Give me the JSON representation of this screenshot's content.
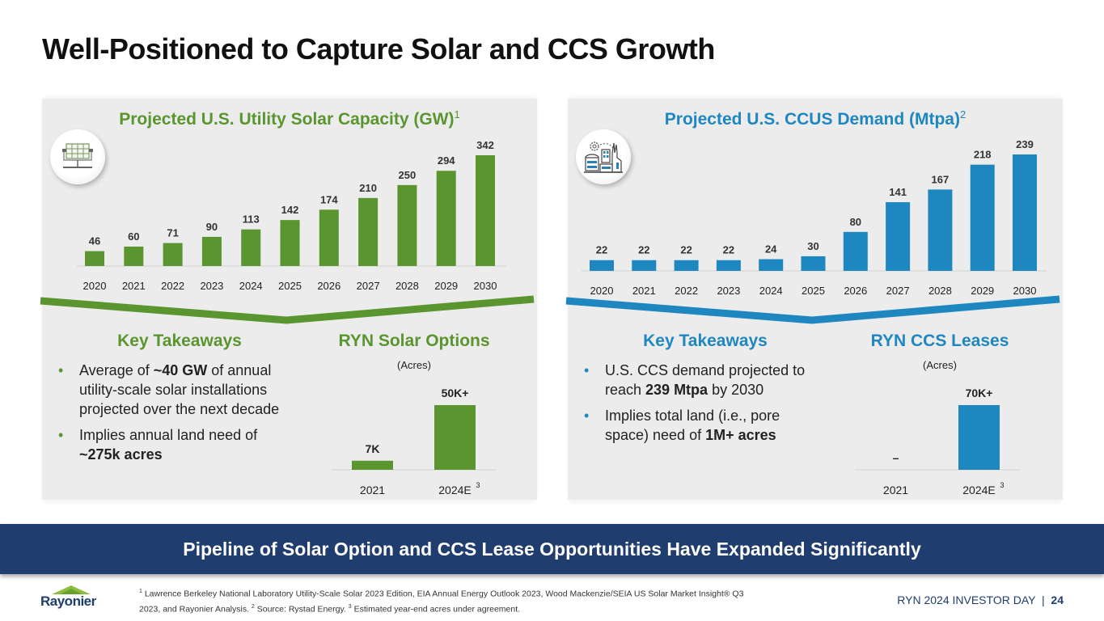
{
  "title": "Well-Positioned to Capture Solar and CCS Growth",
  "colors": {
    "solar_green": "#5a9530",
    "ccs_blue": "#1f87c0",
    "banner_navy": "#1f3d6e",
    "panel_bg": "#ececec"
  },
  "chart_data": [
    {
      "type": "bar",
      "title": "Projected U.S. Utility Solar Capacity (GW)",
      "title_footnote": "1",
      "categories": [
        "2020",
        "2021",
        "2022",
        "2023",
        "2024",
        "2025",
        "2026",
        "2027",
        "2028",
        "2029",
        "2030"
      ],
      "values": [
        46,
        60,
        71,
        90,
        113,
        142,
        174,
        210,
        250,
        294,
        342
      ],
      "data_labels": [
        "46",
        "60",
        "71",
        "90",
        "113",
        "142",
        "174",
        "210",
        "250",
        "294",
        "342"
      ],
      "xlabel": "",
      "ylabel": "GW",
      "ylim": [
        0,
        342
      ],
      "color": "#5a9530",
      "icon": "solar-panel-icon",
      "grid": false
    },
    {
      "type": "bar",
      "title": "Projected U.S. CCUS Demand (Mtpa)",
      "title_footnote": "2",
      "categories": [
        "2020",
        "2021",
        "2022",
        "2023",
        "2024",
        "2025",
        "2026",
        "2027",
        "2028",
        "2029",
        "2030"
      ],
      "values": [
        22,
        22,
        22,
        22,
        24,
        30,
        80,
        141,
        167,
        218,
        239
      ],
      "data_labels": [
        "22",
        "22",
        "22",
        "22",
        "24",
        "30",
        "80",
        "141",
        "167",
        "218",
        "239"
      ],
      "xlabel": "",
      "ylabel": "Mtpa",
      "ylim": [
        0,
        239
      ],
      "color": "#1f87c0",
      "icon": "industrial-facility-icon",
      "grid": false
    },
    {
      "type": "bar",
      "title": "RYN Solar Options",
      "subtitle": "(Acres)",
      "categories": [
        "2021",
        "2024E"
      ],
      "category_footnotes": [
        "",
        "3"
      ],
      "values": [
        7000,
        50000
      ],
      "data_labels": [
        "7K",
        "50K+"
      ],
      "ylim": [
        0,
        50000
      ],
      "color": "#5a9530",
      "grid": false
    },
    {
      "type": "bar",
      "title": "RYN CCS Leases",
      "subtitle": "(Acres)",
      "categories": [
        "2021",
        "2024E"
      ],
      "category_footnotes": [
        "",
        "3"
      ],
      "values": [
        0,
        70000
      ],
      "data_labels": [
        "–",
        "70K+"
      ],
      "ylim": [
        0,
        70000
      ],
      "color": "#1f87c0",
      "grid": false
    }
  ],
  "solar": {
    "takeaways_title": "Key Takeaways",
    "bullets": [
      {
        "pre": "Average of ",
        "bold": "~40 GW",
        "post": " of annual utility-scale solar installations projected over the next decade"
      },
      {
        "pre": "Implies annual land need of ",
        "bold": "~275k acres",
        "post": ""
      }
    ]
  },
  "ccs": {
    "takeaways_title": "Key Takeaways",
    "bullets": [
      {
        "pre": "U.S. CCS demand projected to reach ",
        "bold": "239 Mtpa",
        "post": " by 2030"
      },
      {
        "pre": "Implies total land (i.e., pore space) need of ",
        "bold": "1M+ acres",
        "post": ""
      }
    ]
  },
  "banner": "Pipeline of Solar Option and CCS Lease Opportunities Have Expanded Significantly",
  "logo": "Rayonier",
  "footnotes": {
    "n1": "1",
    "t1": " Lawrence Berkeley National Laboratory Utility-Scale Solar 2023 Edition, EIA Annual Energy Outlook 2023, Wood Mackenzie/SEIA US Solar Market Insight® Q3 2023, and Rayonier Analysis. ",
    "n2": "2",
    "t2": " Source: Rystad Energy. ",
    "n3": "3",
    "t3": " Estimated year-end acres under agreement."
  },
  "page": {
    "event": "RYN 2024 INVESTOR DAY",
    "separator": "|",
    "number": "24"
  }
}
